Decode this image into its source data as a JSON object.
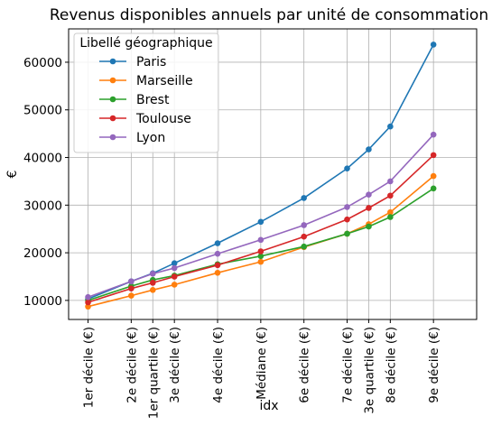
{
  "chart_data": {
    "type": "line",
    "title": "Revenus disponibles annuels par unité de consommation",
    "xlabel": "idx",
    "ylabel": "€",
    "grid": true,
    "legend": {
      "title": "Libellé géographique",
      "placement": "top-left"
    },
    "categories": [
      "1er décile (€)",
      "2e décile (€)",
      "1er quartile (€)",
      "3e décile (€)",
      "4e décile (€)",
      "Médiane (€)",
      "6e décile (€)",
      "7e décile (€)",
      "3e quartile (€)",
      "8e décile (€)",
      "9e décile (€)"
    ],
    "x": [
      1,
      2,
      2.5,
      3,
      4,
      5,
      6,
      7,
      7.5,
      8,
      9
    ],
    "xlim": [
      0.55,
      10
    ],
    "ylim": [
      6000,
      67000
    ],
    "yticks": [
      10000,
      20000,
      30000,
      40000,
      50000,
      60000
    ],
    "series": [
      {
        "name": "Paris",
        "color": "#1f77b4",
        "values": [
          10300,
          14000,
          15700,
          17800,
          22000,
          26500,
          31500,
          37700,
          41700,
          46500,
          63700
        ]
      },
      {
        "name": "Marseille",
        "color": "#ff7f0e",
        "values": [
          8700,
          11000,
          12200,
          13300,
          15800,
          18100,
          21200,
          24000,
          26000,
          28500,
          36100
        ]
      },
      {
        "name": "Brest",
        "color": "#2ca02c",
        "values": [
          10000,
          13000,
          14300,
          15200,
          17600,
          19300,
          21300,
          24000,
          25500,
          27500,
          33500
        ]
      },
      {
        "name": "Toulouse",
        "color": "#d62728",
        "values": [
          9600,
          12500,
          13700,
          15000,
          17400,
          20300,
          23400,
          27000,
          29400,
          32000,
          40500
        ]
      },
      {
        "name": "Lyon",
        "color": "#9467bd",
        "values": [
          10700,
          14000,
          15600,
          16800,
          19800,
          22700,
          25800,
          29600,
          32200,
          35000,
          44800
        ]
      }
    ]
  }
}
